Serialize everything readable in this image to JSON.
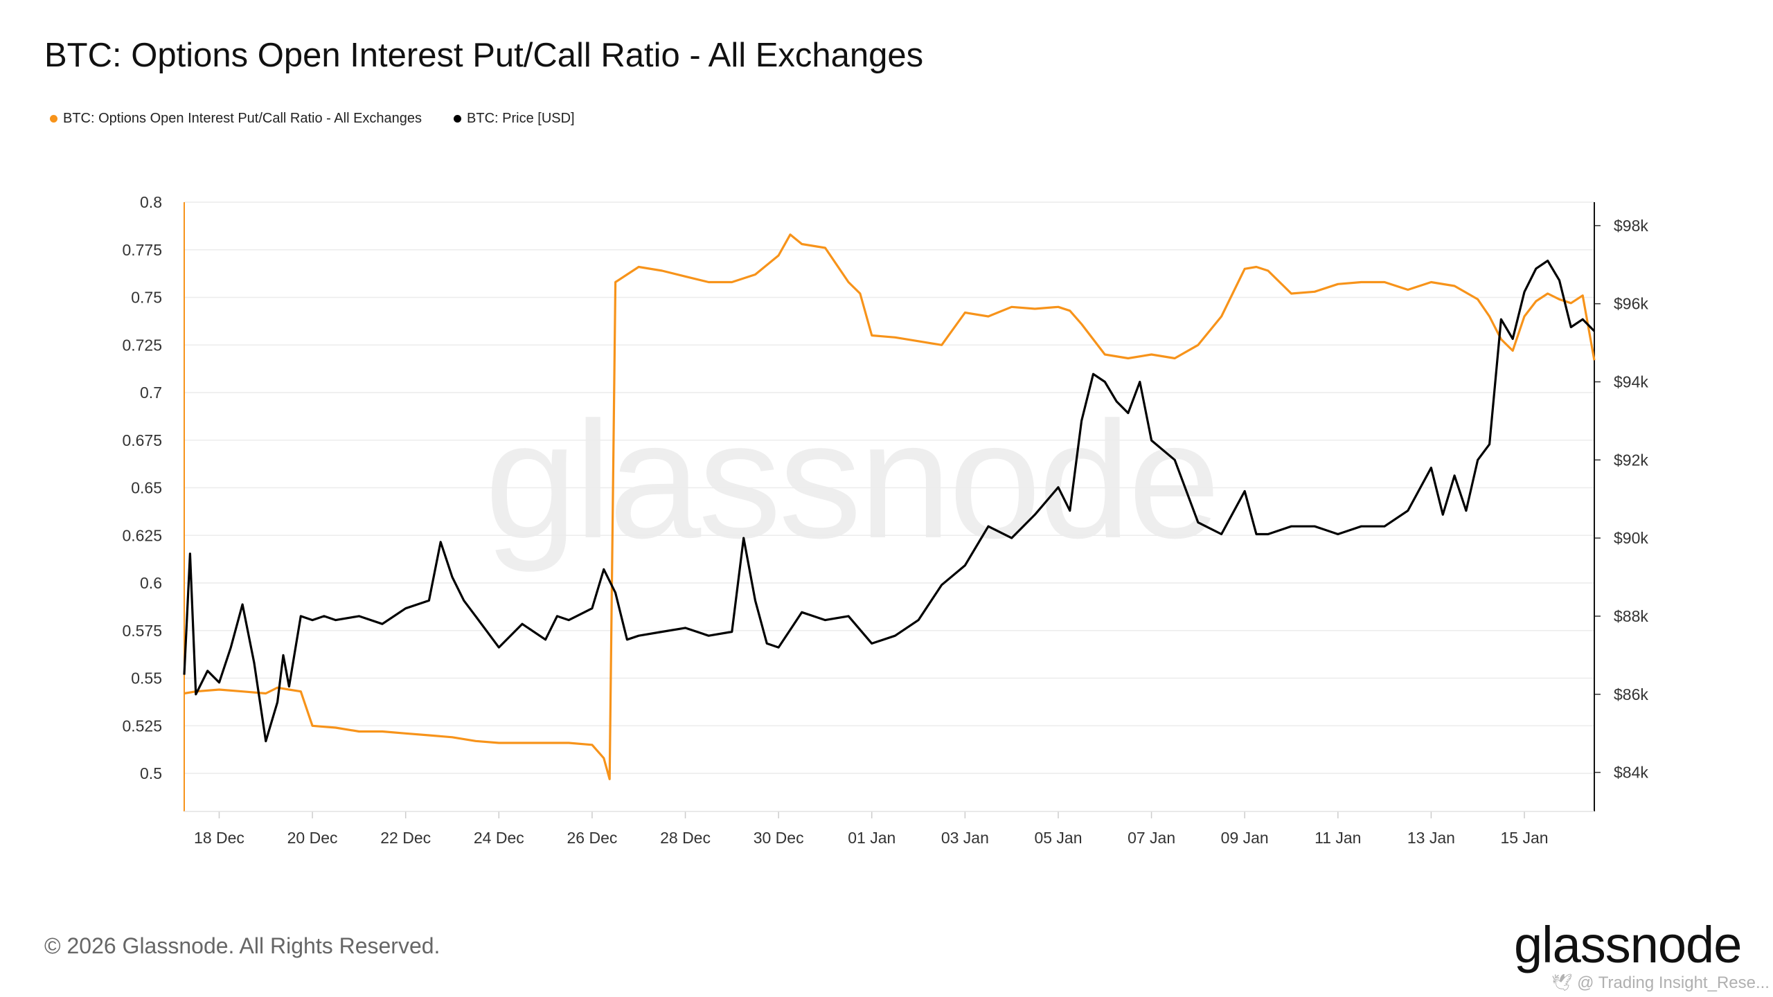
{
  "title": "BTC: Options Open Interest Put/Call Ratio - All Exchanges",
  "legend": [
    {
      "label": "BTC: Options Open Interest Put/Call Ratio - All Exchanges",
      "color": "#f7931a"
    },
    {
      "label": "BTC: Price [USD]",
      "color": "#000000"
    }
  ],
  "footer": "© 2026 Glassnode. All Rights Reserved.",
  "logo": "glassnode",
  "watermark": "glassnode",
  "credit": "🕊 @ Trading Insight_Rese...",
  "chart_data": {
    "type": "line",
    "x_ticks": [
      "18 Dec",
      "20 Dec",
      "22 Dec",
      "24 Dec",
      "26 Dec",
      "28 Dec",
      "30 Dec",
      "01 Jan",
      "03 Jan",
      "05 Jan",
      "07 Jan",
      "09 Jan",
      "11 Jan",
      "13 Jan",
      "15 Jan"
    ],
    "left_axis": {
      "ticks": [
        "0.8",
        "0.775",
        "0.75",
        "0.725",
        "0.7",
        "0.675",
        "0.65",
        "0.625",
        "0.6",
        "0.575",
        "0.55",
        "0.525",
        "0.5"
      ],
      "range": [
        0.48,
        0.8
      ]
    },
    "right_axis": {
      "ticks": [
        "$98k",
        "$96k",
        "$94k",
        "$92k",
        "$90k",
        "$88k",
        "$86k",
        "$84k"
      ],
      "range": [
        83000,
        98600
      ]
    },
    "grid": "horizontal",
    "series": [
      {
        "name": "BTC: Options Open Interest Put/Call Ratio - All Exchanges",
        "axis": "left",
        "color": "#f7931a",
        "x": [
          "17 Dec 06:00",
          "17 Dec 12:00",
          "18 Dec 00:00",
          "18 Dec 12:00",
          "19 Dec 00:00",
          "19 Dec 06:00",
          "19 Dec 12:00",
          "19 Dec 18:00",
          "20 Dec 00:00",
          "20 Dec 12:00",
          "21 Dec 00:00",
          "21 Dec 12:00",
          "22 Dec 00:00",
          "22 Dec 12:00",
          "23 Dec 00:00",
          "23 Dec 12:00",
          "24 Dec 00:00",
          "24 Dec 12:00",
          "25 Dec 00:00",
          "25 Dec 12:00",
          "26 Dec 00:00",
          "26 Dec 06:00",
          "26 Dec 09:00",
          "26 Dec 12:00",
          "26 Dec 18:00",
          "27 Dec 00:00",
          "27 Dec 12:00",
          "28 Dec 00:00",
          "28 Dec 12:00",
          "29 Dec 00:00",
          "29 Dec 12:00",
          "30 Dec 00:00",
          "30 Dec 06:00",
          "30 Dec 12:00",
          "31 Dec 00:00",
          "31 Dec 12:00",
          "31 Dec 18:00",
          "01 Jan 00:00",
          "01 Jan 12:00",
          "02 Jan 00:00",
          "02 Jan 12:00",
          "03 Jan 00:00",
          "03 Jan 12:00",
          "04 Jan 00:00",
          "04 Jan 12:00",
          "05 Jan 00:00",
          "05 Jan 06:00",
          "05 Jan 12:00",
          "06 Jan 00:00",
          "06 Jan 12:00",
          "07 Jan 00:00",
          "07 Jan 12:00",
          "08 Jan 00:00",
          "08 Jan 12:00",
          "09 Jan 00:00",
          "09 Jan 06:00",
          "09 Jan 12:00",
          "10 Jan 00:00",
          "10 Jan 12:00",
          "11 Jan 00:00",
          "11 Jan 12:00",
          "12 Jan 00:00",
          "12 Jan 12:00",
          "13 Jan 00:00",
          "13 Jan 12:00",
          "14 Jan 00:00",
          "14 Jan 06:00",
          "14 Jan 12:00",
          "14 Jan 18:00",
          "15 Jan 00:00",
          "15 Jan 06:00",
          "15 Jan 12:00",
          "15 Jan 18:00",
          "16 Jan 00:00",
          "16 Jan 06:00",
          "16 Jan 12:00"
        ],
        "values": [
          0.542,
          0.543,
          0.544,
          0.543,
          0.542,
          0.545,
          0.544,
          0.543,
          0.525,
          0.524,
          0.522,
          0.522,
          0.521,
          0.52,
          0.519,
          0.517,
          0.516,
          0.516,
          0.516,
          0.516,
          0.515,
          0.508,
          0.497,
          0.758,
          0.762,
          0.766,
          0.764,
          0.761,
          0.758,
          0.758,
          0.762,
          0.772,
          0.783,
          0.778,
          0.776,
          0.758,
          0.752,
          0.73,
          0.729,
          0.727,
          0.725,
          0.742,
          0.74,
          0.745,
          0.744,
          0.745,
          0.743,
          0.736,
          0.72,
          0.718,
          0.72,
          0.718,
          0.725,
          0.74,
          0.765,
          0.766,
          0.764,
          0.752,
          0.753,
          0.757,
          0.758,
          0.758,
          0.754,
          0.758,
          0.756,
          0.749,
          0.74,
          0.728,
          0.722,
          0.74,
          0.748,
          0.752,
          0.749,
          0.747,
          0.751,
          0.717
        ]
      },
      {
        "name": "BTC: Price [USD]",
        "axis": "right",
        "color": "#000000",
        "x": [
          "17 Dec 06:00",
          "17 Dec 09:00",
          "17 Dec 12:00",
          "17 Dec 18:00",
          "18 Dec 00:00",
          "18 Dec 06:00",
          "18 Dec 12:00",
          "18 Dec 18:00",
          "19 Dec 00:00",
          "19 Dec 06:00",
          "19 Dec 09:00",
          "19 Dec 12:00",
          "19 Dec 18:00",
          "20 Dec 00:00",
          "20 Dec 06:00",
          "20 Dec 12:00",
          "21 Dec 00:00",
          "21 Dec 12:00",
          "22 Dec 00:00",
          "22 Dec 12:00",
          "22 Dec 18:00",
          "23 Dec 00:00",
          "23 Dec 06:00",
          "23 Dec 12:00",
          "24 Dec 00:00",
          "24 Dec 12:00",
          "25 Dec 00:00",
          "25 Dec 06:00",
          "25 Dec 12:00",
          "26 Dec 00:00",
          "26 Dec 06:00",
          "26 Dec 12:00",
          "26 Dec 18:00",
          "27 Dec 00:00",
          "27 Dec 12:00",
          "28 Dec 00:00",
          "28 Dec 12:00",
          "29 Dec 00:00",
          "29 Dec 06:00",
          "29 Dec 12:00",
          "29 Dec 18:00",
          "30 Dec 00:00",
          "30 Dec 12:00",
          "31 Dec 00:00",
          "31 Dec 12:00",
          "01 Jan 00:00",
          "01 Jan 12:00",
          "02 Jan 00:00",
          "02 Jan 12:00",
          "03 Jan 00:00",
          "03 Jan 12:00",
          "04 Jan 00:00",
          "04 Jan 12:00",
          "05 Jan 00:00",
          "05 Jan 06:00",
          "05 Jan 12:00",
          "05 Jan 18:00",
          "06 Jan 00:00",
          "06 Jan 06:00",
          "06 Jan 12:00",
          "06 Jan 18:00",
          "07 Jan 00:00",
          "07 Jan 12:00",
          "08 Jan 00:00",
          "08 Jan 12:00",
          "09 Jan 00:00",
          "09 Jan 06:00",
          "09 Jan 12:00",
          "10 Jan 00:00",
          "10 Jan 12:00",
          "11 Jan 00:00",
          "11 Jan 12:00",
          "12 Jan 00:00",
          "12 Jan 12:00",
          "13 Jan 00:00",
          "13 Jan 06:00",
          "13 Jan 12:00",
          "13 Jan 18:00",
          "14 Jan 00:00",
          "14 Jan 06:00",
          "14 Jan 12:00",
          "14 Jan 18:00",
          "15 Jan 00:00",
          "15 Jan 06:00",
          "15 Jan 12:00",
          "15 Jan 18:00",
          "16 Jan 00:00",
          "16 Jan 06:00",
          "16 Jan 12:00"
        ],
        "values": [
          86500,
          89600,
          86000,
          86600,
          86300,
          87200,
          88300,
          86800,
          84800,
          85800,
          87000,
          86200,
          88000,
          87900,
          88000,
          87900,
          88000,
          87800,
          88200,
          88400,
          89900,
          89000,
          88400,
          88000,
          87200,
          87800,
          87400,
          88000,
          87900,
          88200,
          89200,
          88600,
          87400,
          87500,
          87600,
          87700,
          87500,
          87600,
          90000,
          88400,
          87300,
          87200,
          88100,
          87900,
          88000,
          87300,
          87500,
          87900,
          88800,
          89300,
          90300,
          90000,
          90600,
          91300,
          90700,
          93000,
          94200,
          94000,
          93500,
          93200,
          94000,
          92500,
          92000,
          90400,
          90100,
          91200,
          90100,
          90100,
          90300,
          90300,
          90100,
          90300,
          90300,
          90700,
          91800,
          90600,
          91600,
          90700,
          92000,
          92400,
          95600,
          95100,
          96300,
          96900,
          97100,
          96600,
          95400,
          95600,
          95300
        ]
      }
    ]
  }
}
